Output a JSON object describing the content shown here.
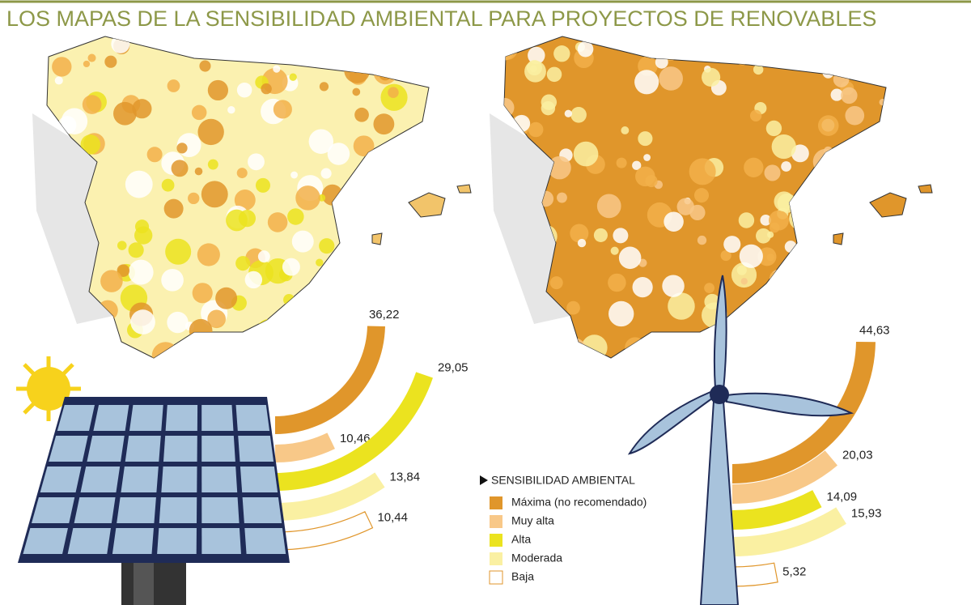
{
  "title": "LOS MAPAS DE LA SENSIBILIDAD AMBIENTAL PARA PROYECTOS DE RENOVABLES",
  "legend": {
    "title": "SENSIBILIDAD AMBIENTAL",
    "items": [
      {
        "name": "Máxima (no recomendado)",
        "color": "#e0962b"
      },
      {
        "name": "Muy alta",
        "color": "#f8c888"
      },
      {
        "name": "Alta",
        "color": "#ebe31f"
      },
      {
        "name": "Moderada",
        "color": "#faf0a2"
      },
      {
        "name": "Baja",
        "color": "#ffffff"
      }
    ]
  },
  "chart_data": [
    {
      "type": "radial-bar",
      "values": [
        36.22,
        10.46,
        29.05,
        13.84,
        10.44
      ],
      "value_labels": [
        "36,22",
        "10,46",
        "29,05",
        "13,84",
        "10,44"
      ]
    },
    {
      "type": "radial-bar",
      "values": [
        44.63,
        20.03,
        14.09,
        15.93,
        5.32
      ],
      "value_labels": [
        "44,63",
        "20,03",
        "14,09",
        "15,93",
        "5,32"
      ]
    }
  ]
}
